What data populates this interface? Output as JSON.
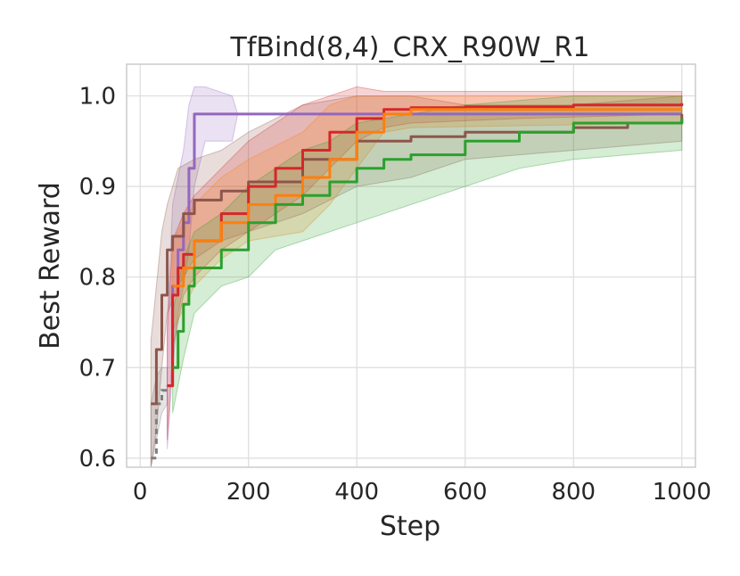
{
  "chart_data": {
    "type": "line",
    "title": "TfBind(8,4)_CRX_R90W_R1",
    "xlabel": "Step",
    "ylabel": "Best Reward",
    "xlim": [
      -25,
      1025
    ],
    "ylim": [
      0.59,
      1.035
    ],
    "xticks": [
      0,
      200,
      400,
      600,
      800,
      1000
    ],
    "yticks": [
      0.6,
      0.7,
      0.8,
      0.9,
      1.0
    ],
    "xtick_labels": [
      "0",
      "200",
      "400",
      "600",
      "800",
      "1000"
    ],
    "ytick_labels": [
      "0.6",
      "0.7",
      "0.8",
      "0.9",
      "1.0"
    ],
    "grid": true,
    "series": [
      {
        "color": "#7f7f7f",
        "dashed": true,
        "points": [
          [
            20,
            0.6
          ],
          [
            30,
            0.66
          ],
          [
            40,
            0.675
          ],
          [
            50,
            0.68
          ]
        ],
        "band": [
          [
            20,
            0.59,
            0.66
          ],
          [
            30,
            0.62,
            0.69
          ],
          [
            40,
            0.65,
            0.7
          ],
          [
            50,
            0.66,
            0.7
          ]
        ]
      },
      {
        "color": "#9467bd",
        "points": [
          [
            50,
            0.68
          ],
          [
            60,
            0.79
          ],
          [
            70,
            0.83
          ],
          [
            80,
            0.86
          ],
          [
            90,
            0.92
          ],
          [
            100,
            0.98
          ],
          [
            200,
            0.98
          ],
          [
            400,
            0.98
          ],
          [
            1000,
            0.98
          ]
        ],
        "band": [
          [
            50,
            0.61,
            0.75
          ],
          [
            60,
            0.7,
            0.88
          ],
          [
            70,
            0.76,
            0.91
          ],
          [
            80,
            0.79,
            0.94
          ],
          [
            90,
            0.83,
            0.99
          ],
          [
            100,
            0.9,
            1.01
          ],
          [
            120,
            0.95,
            1.01
          ],
          [
            170,
            0.95,
            1.0
          ],
          [
            180,
            0.98,
            0.98
          ],
          [
            1000,
            0.98,
            0.98
          ]
        ]
      },
      {
        "color": "#8c564b",
        "points": [
          [
            20,
            0.66
          ],
          [
            30,
            0.72
          ],
          [
            40,
            0.78
          ],
          [
            50,
            0.83
          ],
          [
            60,
            0.845
          ],
          [
            80,
            0.87
          ],
          [
            100,
            0.885
          ],
          [
            150,
            0.895
          ],
          [
            200,
            0.905
          ],
          [
            300,
            0.93
          ],
          [
            400,
            0.95
          ],
          [
            500,
            0.955
          ],
          [
            600,
            0.96
          ],
          [
            700,
            0.96
          ],
          [
            800,
            0.965
          ],
          [
            900,
            0.97
          ],
          [
            1000,
            0.98
          ]
        ],
        "band": [
          [
            20,
            0.59,
            0.73
          ],
          [
            30,
            0.63,
            0.79
          ],
          [
            40,
            0.7,
            0.85
          ],
          [
            50,
            0.76,
            0.88
          ],
          [
            70,
            0.79,
            0.92
          ],
          [
            100,
            0.82,
            0.93
          ],
          [
            150,
            0.84,
            0.94
          ],
          [
            200,
            0.85,
            0.96
          ],
          [
            300,
            0.87,
            0.99
          ],
          [
            400,
            0.9,
            1.0
          ],
          [
            500,
            0.91,
            1.0
          ],
          [
            600,
            0.93,
            0.99
          ],
          [
            800,
            0.94,
            0.99
          ],
          [
            1000,
            0.95,
            1.0
          ]
        ]
      },
      {
        "color": "#d62728",
        "points": [
          [
            50,
            0.68
          ],
          [
            60,
            0.78
          ],
          [
            70,
            0.81
          ],
          [
            80,
            0.825
          ],
          [
            100,
            0.84
          ],
          [
            150,
            0.87
          ],
          [
            200,
            0.9
          ],
          [
            250,
            0.92
          ],
          [
            300,
            0.94
          ],
          [
            350,
            0.96
          ],
          [
            400,
            0.975
          ],
          [
            450,
            0.985
          ],
          [
            500,
            0.987
          ],
          [
            600,
            0.988
          ],
          [
            800,
            0.99
          ],
          [
            1000,
            0.992
          ]
        ],
        "band": [
          [
            50,
            0.62,
            0.74
          ],
          [
            60,
            0.72,
            0.84
          ],
          [
            80,
            0.78,
            0.87
          ],
          [
            100,
            0.8,
            0.89
          ],
          [
            150,
            0.83,
            0.92
          ],
          [
            200,
            0.85,
            0.95
          ],
          [
            250,
            0.87,
            0.97
          ],
          [
            300,
            0.89,
            0.99
          ],
          [
            350,
            0.92,
            1.0
          ],
          [
            400,
            0.95,
            1.01
          ],
          [
            450,
            0.965,
            1.005
          ],
          [
            500,
            0.97,
            1.005
          ],
          [
            700,
            0.975,
            1.005
          ],
          [
            1000,
            0.98,
            1.005
          ]
        ]
      },
      {
        "color": "#ff7f0e",
        "points": [
          [
            60,
            0.79
          ],
          [
            80,
            0.81
          ],
          [
            100,
            0.84
          ],
          [
            150,
            0.86
          ],
          [
            200,
            0.88
          ],
          [
            250,
            0.89
          ],
          [
            300,
            0.91
          ],
          [
            350,
            0.93
          ],
          [
            400,
            0.96
          ],
          [
            450,
            0.98
          ],
          [
            500,
            0.985
          ],
          [
            700,
            0.985
          ],
          [
            1000,
            0.985
          ]
        ],
        "band": [
          [
            60,
            0.74,
            0.84
          ],
          [
            100,
            0.79,
            0.88
          ],
          [
            150,
            0.82,
            0.91
          ],
          [
            200,
            0.84,
            0.93
          ],
          [
            300,
            0.85,
            0.96
          ],
          [
            350,
            0.88,
            0.99
          ],
          [
            400,
            0.92,
            1.0
          ],
          [
            450,
            0.96,
            1.0
          ],
          [
            500,
            0.965,
            1.0
          ],
          [
            1000,
            0.97,
            1.0
          ]
        ]
      },
      {
        "color": "#2ca02c",
        "points": [
          [
            60,
            0.7
          ],
          [
            70,
            0.74
          ],
          [
            80,
            0.77
          ],
          [
            90,
            0.79
          ],
          [
            100,
            0.81
          ],
          [
            150,
            0.83
          ],
          [
            200,
            0.86
          ],
          [
            250,
            0.88
          ],
          [
            300,
            0.89
          ],
          [
            350,
            0.905
          ],
          [
            400,
            0.92
          ],
          [
            450,
            0.93
          ],
          [
            500,
            0.935
          ],
          [
            600,
            0.95
          ],
          [
            700,
            0.96
          ],
          [
            800,
            0.97
          ],
          [
            1000,
            0.975
          ]
        ],
        "band": [
          [
            60,
            0.65,
            0.76
          ],
          [
            80,
            0.71,
            0.82
          ],
          [
            100,
            0.76,
            0.85
          ],
          [
            150,
            0.79,
            0.87
          ],
          [
            200,
            0.8,
            0.9
          ],
          [
            250,
            0.83,
            0.92
          ],
          [
            300,
            0.84,
            0.94
          ],
          [
            350,
            0.85,
            0.95
          ],
          [
            400,
            0.86,
            0.97
          ],
          [
            500,
            0.88,
            0.98
          ],
          [
            600,
            0.9,
            0.99
          ],
          [
            700,
            0.92,
            0.995
          ],
          [
            800,
            0.93,
            1.0
          ],
          [
            1000,
            0.94,
            1.0
          ]
        ]
      }
    ]
  }
}
